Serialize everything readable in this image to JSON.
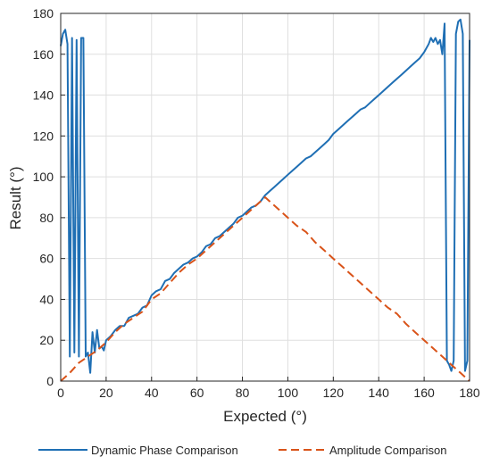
{
  "chart_data": {
    "type": "line",
    "title": "",
    "xlabel": "Expected (°)",
    "ylabel": "Result (°)",
    "xlim": [
      0,
      180
    ],
    "ylim": [
      0,
      180
    ],
    "xticks": [
      0,
      20,
      40,
      60,
      80,
      100,
      120,
      140,
      160,
      180
    ],
    "yticks": [
      0,
      20,
      40,
      60,
      80,
      100,
      120,
      140,
      160,
      180
    ],
    "grid": true,
    "legend_position": "bottom",
    "series": [
      {
        "name": "Dynamic Phase Comparison",
        "color": "#1f6fb4",
        "style": "solid",
        "points": [
          [
            0,
            164
          ],
          [
            1,
            170
          ],
          [
            2,
            172
          ],
          [
            3,
            165
          ],
          [
            4,
            12
          ],
          [
            5,
            168
          ],
          [
            6,
            14
          ],
          [
            7,
            167
          ],
          [
            8,
            12
          ],
          [
            9,
            168
          ],
          [
            10,
            168
          ],
          [
            11,
            12
          ],
          [
            12,
            14
          ],
          [
            13,
            4
          ],
          [
            14,
            24
          ],
          [
            15,
            14
          ],
          [
            16,
            25
          ],
          [
            17,
            16
          ],
          [
            18,
            17
          ],
          [
            19,
            15
          ],
          [
            20,
            20
          ],
          [
            22,
            22
          ],
          [
            24,
            25
          ],
          [
            26,
            27
          ],
          [
            28,
            27
          ],
          [
            30,
            31
          ],
          [
            32,
            32
          ],
          [
            34,
            33
          ],
          [
            36,
            36
          ],
          [
            38,
            37
          ],
          [
            40,
            42
          ],
          [
            42,
            44
          ],
          [
            44,
            45
          ],
          [
            46,
            49
          ],
          [
            48,
            50
          ],
          [
            50,
            53
          ],
          [
            52,
            55
          ],
          [
            54,
            57
          ],
          [
            56,
            58
          ],
          [
            58,
            60
          ],
          [
            60,
            61
          ],
          [
            62,
            63
          ],
          [
            64,
            66
          ],
          [
            66,
            67
          ],
          [
            68,
            70
          ],
          [
            70,
            71
          ],
          [
            72,
            73
          ],
          [
            74,
            75
          ],
          [
            76,
            77
          ],
          [
            78,
            80
          ],
          [
            80,
            81
          ],
          [
            82,
            83
          ],
          [
            84,
            85
          ],
          [
            86,
            86
          ],
          [
            88,
            88
          ],
          [
            90,
            91
          ],
          [
            92,
            93
          ],
          [
            94,
            95
          ],
          [
            96,
            97
          ],
          [
            98,
            99
          ],
          [
            100,
            101
          ],
          [
            102,
            103
          ],
          [
            104,
            105
          ],
          [
            106,
            107
          ],
          [
            108,
            109
          ],
          [
            110,
            110
          ],
          [
            112,
            112
          ],
          [
            114,
            114
          ],
          [
            116,
            116
          ],
          [
            118,
            118
          ],
          [
            120,
            121
          ],
          [
            122,
            123
          ],
          [
            124,
            125
          ],
          [
            126,
            127
          ],
          [
            128,
            129
          ],
          [
            130,
            131
          ],
          [
            132,
            133
          ],
          [
            134,
            134
          ],
          [
            136,
            136
          ],
          [
            138,
            138
          ],
          [
            140,
            140
          ],
          [
            142,
            142
          ],
          [
            144,
            144
          ],
          [
            146,
            146
          ],
          [
            148,
            148
          ],
          [
            150,
            150
          ],
          [
            152,
            152
          ],
          [
            154,
            154
          ],
          [
            156,
            156
          ],
          [
            158,
            158
          ],
          [
            160,
            161
          ],
          [
            162,
            165
          ],
          [
            163,
            168
          ],
          [
            164,
            166
          ],
          [
            165,
            168
          ],
          [
            166,
            165
          ],
          [
            167,
            167
          ],
          [
            168,
            160
          ],
          [
            169,
            175
          ],
          [
            170,
            10
          ],
          [
            171,
            8
          ],
          [
            172,
            5
          ],
          [
            173,
            10
          ],
          [
            174,
            170
          ],
          [
            175,
            176
          ],
          [
            176,
            177
          ],
          [
            177,
            170
          ],
          [
            178,
            5
          ],
          [
            179,
            10
          ],
          [
            180,
            167
          ]
        ]
      },
      {
        "name": "Amplitude Comparison",
        "color": "#d95319",
        "style": "dashed",
        "points": [
          [
            0,
            0
          ],
          [
            4,
            4
          ],
          [
            8,
            9
          ],
          [
            12,
            12
          ],
          [
            16,
            15
          ],
          [
            20,
            19
          ],
          [
            24,
            24
          ],
          [
            28,
            28
          ],
          [
            32,
            31
          ],
          [
            36,
            34
          ],
          [
            40,
            40
          ],
          [
            44,
            43
          ],
          [
            48,
            48
          ],
          [
            52,
            53
          ],
          [
            56,
            57
          ],
          [
            60,
            60
          ],
          [
            64,
            64
          ],
          [
            68,
            68
          ],
          [
            72,
            72
          ],
          [
            76,
            76
          ],
          [
            80,
            80
          ],
          [
            84,
            84
          ],
          [
            88,
            88
          ],
          [
            90,
            90
          ],
          [
            92,
            88
          ],
          [
            96,
            84
          ],
          [
            100,
            80
          ],
          [
            104,
            76
          ],
          [
            108,
            73
          ],
          [
            112,
            68
          ],
          [
            116,
            64
          ],
          [
            120,
            60
          ],
          [
            124,
            56
          ],
          [
            128,
            52
          ],
          [
            132,
            48
          ],
          [
            136,
            44
          ],
          [
            140,
            40
          ],
          [
            144,
            36
          ],
          [
            148,
            33
          ],
          [
            152,
            28
          ],
          [
            156,
            24
          ],
          [
            160,
            20
          ],
          [
            164,
            16
          ],
          [
            168,
            12
          ],
          [
            172,
            8
          ],
          [
            176,
            4
          ],
          [
            180,
            0
          ]
        ]
      }
    ]
  }
}
